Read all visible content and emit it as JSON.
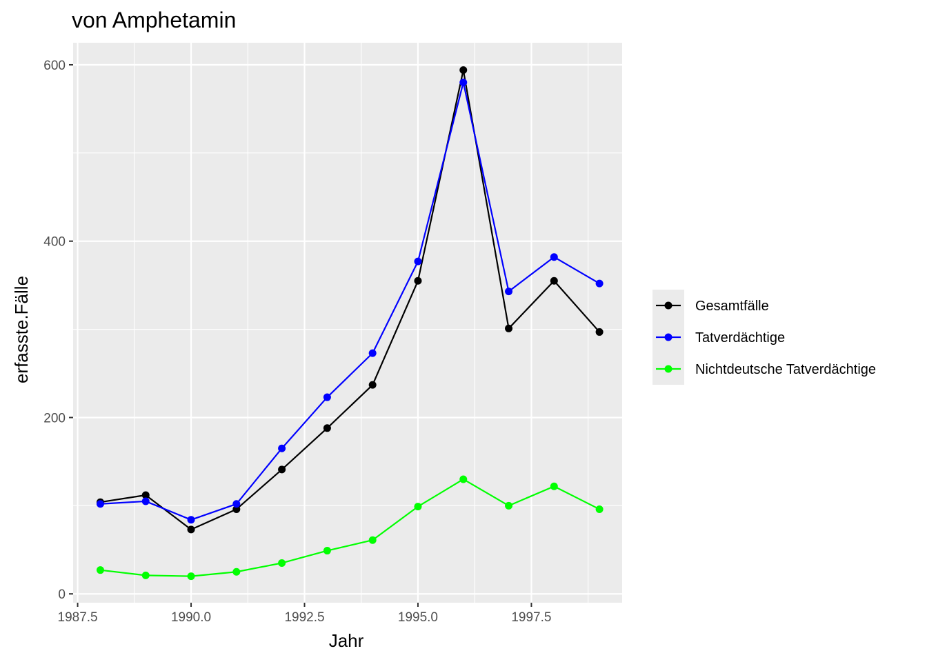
{
  "chart_data": {
    "type": "line",
    "title": "von Amphetamin",
    "xlabel": "Jahr",
    "ylabel": "erfasste.Fälle",
    "xlim": [
      1987.4,
      1999.5
    ],
    "ylim": [
      -10,
      625
    ],
    "x_ticks": [
      1987.5,
      1990.0,
      1992.5,
      1995.0,
      1997.5
    ],
    "x_tick_labels": [
      "1987.5",
      "1990.0",
      "1992.5",
      "1995.0",
      "1997.5"
    ],
    "y_ticks": [
      0,
      200,
      400,
      600
    ],
    "y_tick_labels": [
      "0",
      "200",
      "400",
      "600"
    ],
    "grid": true,
    "legend_position": "right",
    "x": [
      1988,
      1989,
      1990,
      1991,
      1992,
      1993,
      1994,
      1995,
      1996,
      1997,
      1998,
      1999
    ],
    "series": [
      {
        "name": "Gesamtfälle",
        "color": "#000000",
        "values": [
          104,
          112,
          73,
          96,
          141,
          188,
          237,
          355,
          594,
          301,
          355,
          297
        ]
      },
      {
        "name": "Tatverdächtige",
        "color": "#0000ff",
        "values": [
          102,
          105,
          84,
          102,
          165,
          223,
          273,
          377,
          580,
          343,
          382,
          352
        ]
      },
      {
        "name": "Nichtdeutsche Tatverdächtige",
        "color": "#00ff00",
        "values": [
          27,
          21,
          20,
          25,
          35,
          49,
          61,
          99,
          130,
          100,
          122,
          96
        ]
      }
    ]
  }
}
